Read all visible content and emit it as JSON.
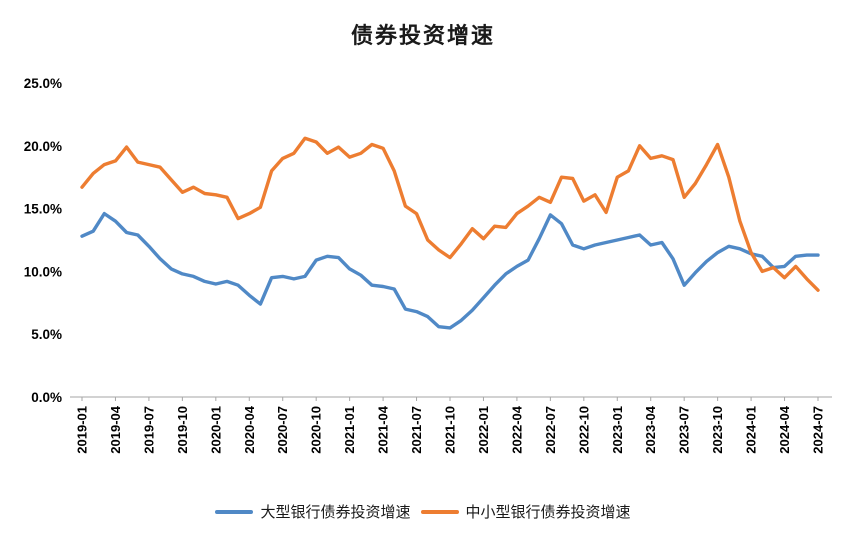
{
  "chart_data": {
    "type": "line",
    "title": "债券投资增速",
    "ylim": [
      0,
      25
    ],
    "y_ticks": [
      "0.0%",
      "5.0%",
      "10.0%",
      "15.0%",
      "20.0%",
      "25.0%"
    ],
    "x_tick_labels": [
      "2019-01",
      "2019-04",
      "2019-07",
      "2019-10",
      "2020-01",
      "2020-04",
      "2020-07",
      "2020-10",
      "2021-01",
      "2021-04",
      "2021-07",
      "2021-10",
      "2022-01",
      "2022-04",
      "2022-07",
      "2022-10",
      "2023-01",
      "2023-04",
      "2023-07",
      "2023-10",
      "2024-01",
      "2024-04",
      "2024-07"
    ],
    "x": [
      "2019-01",
      "2019-02",
      "2019-03",
      "2019-04",
      "2019-05",
      "2019-06",
      "2019-07",
      "2019-08",
      "2019-09",
      "2019-10",
      "2019-11",
      "2019-12",
      "2020-01",
      "2020-02",
      "2020-03",
      "2020-04",
      "2020-05",
      "2020-06",
      "2020-07",
      "2020-08",
      "2020-09",
      "2020-10",
      "2020-11",
      "2020-12",
      "2021-01",
      "2021-02",
      "2021-03",
      "2021-04",
      "2021-05",
      "2021-06",
      "2021-07",
      "2021-08",
      "2021-09",
      "2021-10",
      "2021-11",
      "2021-12",
      "2022-01",
      "2022-02",
      "2022-03",
      "2022-04",
      "2022-05",
      "2022-06",
      "2022-07",
      "2022-08",
      "2022-09",
      "2022-10",
      "2022-11",
      "2022-12",
      "2023-01",
      "2023-02",
      "2023-03",
      "2023-04",
      "2023-05",
      "2023-06",
      "2023-07",
      "2023-08",
      "2023-09",
      "2023-10",
      "2023-11",
      "2023-12",
      "2024-01",
      "2024-02",
      "2024-03",
      "2024-04",
      "2024-05",
      "2024-06",
      "2024-07"
    ],
    "legend_position": "bottom",
    "grid": false,
    "series": [
      {
        "name": "大型银行债券投资增速",
        "color": "#5089C6",
        "values": [
          12.8,
          13.2,
          14.6,
          14.0,
          13.1,
          12.9,
          12.0,
          11.0,
          10.2,
          9.8,
          9.6,
          9.2,
          9.0,
          9.2,
          8.9,
          8.1,
          7.4,
          9.5,
          9.6,
          9.4,
          9.6,
          10.9,
          11.2,
          11.1,
          10.2,
          9.7,
          8.9,
          8.8,
          8.6,
          7.0,
          6.8,
          6.4,
          5.6,
          5.5,
          6.1,
          6.9,
          7.9,
          8.9,
          9.8,
          10.4,
          10.9,
          12.6,
          14.5,
          13.8,
          12.1,
          11.8,
          12.1,
          12.3,
          12.5,
          12.7,
          12.9,
          12.1,
          12.3,
          11.0,
          8.9,
          9.9,
          10.8,
          11.5,
          12.0,
          11.8,
          11.4,
          11.2,
          10.3,
          10.4,
          11.2,
          11.3,
          11.3
        ]
      },
      {
        "name": "中小型银行债券投资增速",
        "color": "#ED7D31",
        "values": [
          16.7,
          17.8,
          18.5,
          18.8,
          19.9,
          18.7,
          18.5,
          18.3,
          17.3,
          16.3,
          16.7,
          16.2,
          16.1,
          15.9,
          14.2,
          14.6,
          15.1,
          18.0,
          19.0,
          19.4,
          20.6,
          20.3,
          19.4,
          19.9,
          19.1,
          19.4,
          20.1,
          19.8,
          18.0,
          15.2,
          14.6,
          12.5,
          11.7,
          11.1,
          12.2,
          13.4,
          12.6,
          13.6,
          13.5,
          14.6,
          15.2,
          15.9,
          15.5,
          17.5,
          17.4,
          15.6,
          16.1,
          14.7,
          17.5,
          18.0,
          20.0,
          19.0,
          19.2,
          18.9,
          15.9,
          17.0,
          18.5,
          20.1,
          17.5,
          14.0,
          11.5,
          10.0,
          10.3,
          9.5,
          10.4,
          9.4,
          8.5
        ]
      }
    ]
  }
}
